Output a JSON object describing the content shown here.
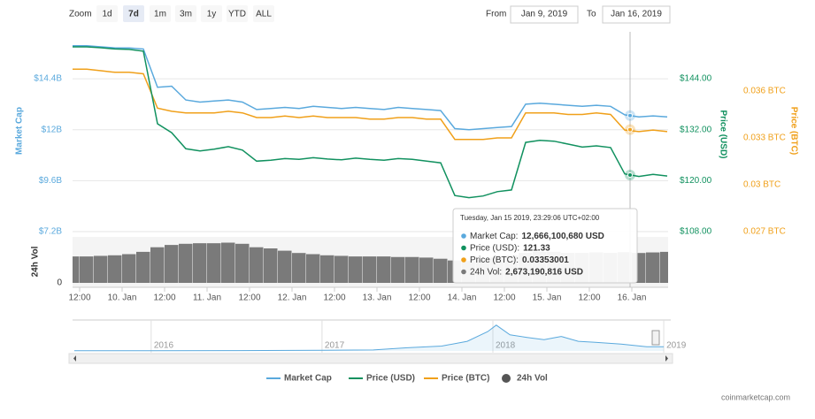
{
  "zoom": {
    "label": "Zoom",
    "buttons": [
      "1d",
      "7d",
      "1m",
      "3m",
      "1y",
      "YTD",
      "ALL"
    ],
    "selected": "7d"
  },
  "range": {
    "from_label": "From",
    "from": "Jan 9, 2019",
    "to_label": "To",
    "to": "Jan 16, 2019"
  },
  "chart_data": {
    "type": "line",
    "x": [
      10,
      14,
      18,
      22,
      26,
      30,
      34,
      38,
      42,
      46,
      50,
      54,
      58,
      62,
      66,
      70,
      74,
      78,
      82,
      86,
      90,
      94,
      98,
      102,
      106,
      110,
      114,
      118,
      122,
      126,
      130,
      134,
      138,
      142,
      146,
      150,
      154,
      158,
      162,
      166,
      170,
      174,
      178
    ],
    "xlim": [
      10,
      178
    ],
    "xticks": [
      {
        "value": 12,
        "label": "12:00"
      },
      {
        "value": 24,
        "label": "10. Jan"
      },
      {
        "value": 36,
        "label": "12:00"
      },
      {
        "value": 48,
        "label": "11. Jan"
      },
      {
        "value": 60,
        "label": "12:00"
      },
      {
        "value": 72,
        "label": "12. Jan"
      },
      {
        "value": 84,
        "label": "12:00"
      },
      {
        "value": 96,
        "label": "13. Jan"
      },
      {
        "value": 108,
        "label": "12:00"
      },
      {
        "value": 120,
        "label": "14. Jan"
      },
      {
        "value": 132,
        "label": "12:00"
      },
      {
        "value": 144,
        "label": "15. Jan"
      },
      {
        "value": 156,
        "label": "12:00"
      },
      {
        "value": 168,
        "label": "16. Jan"
      }
    ],
    "series": [
      {
        "name": "Market Cap",
        "color": "#5aa9dd",
        "axis": "y",
        "values": [
          15950000000.0,
          15950000000.0,
          15900000000.0,
          15850000000.0,
          15850000000.0,
          15800000000.0,
          14000000000.0,
          14050000000.0,
          13400000000.0,
          13300000000.0,
          13350000000.0,
          13400000000.0,
          13300000000.0,
          12950000000.0,
          13000000000.0,
          13050000000.0,
          13000000000.0,
          13100000000.0,
          13050000000.0,
          13000000000.0,
          13050000000.0,
          13000000000.0,
          12950000000.0,
          13050000000.0,
          13000000000.0,
          12950000000.0,
          12900000000.0,
          12050000000.0,
          12000000000.0,
          12050000000.0,
          12100000000.0,
          12150000000.0,
          13200000000.0,
          13250000000.0,
          13200000000.0,
          13150000000.0,
          13100000000.0,
          13150000000.0,
          13100000000.0,
          12700000000.0,
          12600000000.0,
          12650000000.0,
          12600000000.0
        ]
      },
      {
        "name": "Price (USD)",
        "color": "#11915f",
        "axis": "y2",
        "values": [
          151.5,
          151.5,
          151.3,
          151,
          150.9,
          150.5,
          133.4,
          131.3,
          127.5,
          127,
          127.4,
          128,
          127.2,
          124.6,
          124.8,
          125.2,
          125,
          125.4,
          125.1,
          124.9,
          125.3,
          125,
          124.8,
          125.2,
          125,
          124.6,
          124.2,
          116.5,
          116,
          116.4,
          117.4,
          117.8,
          129,
          129.5,
          129.3,
          128.6,
          127.9,
          128.2,
          127.8,
          121.6,
          121,
          121.5,
          121.1
        ]
      },
      {
        "name": "Price (BTC)",
        "color": "#f0a01a",
        "axis": "y3",
        "values": [
          0.0374,
          0.0374,
          0.0373,
          0.0372,
          0.0372,
          0.0371,
          0.0349,
          0.0347,
          0.0346,
          0.0346,
          0.0346,
          0.0347,
          0.0346,
          0.0343,
          0.0343,
          0.0344,
          0.0343,
          0.0344,
          0.0343,
          0.0343,
          0.0343,
          0.0342,
          0.0342,
          0.0343,
          0.0343,
          0.0342,
          0.0342,
          0.0329,
          0.0329,
          0.0329,
          0.033,
          0.033,
          0.0346,
          0.0346,
          0.0346,
          0.0345,
          0.0345,
          0.0346,
          0.0345,
          0.0335,
          0.0334,
          0.0335,
          0.0334
        ]
      },
      {
        "name": "24h Vol",
        "color": "#7a7a7a",
        "axis": "y4",
        "type": "bar",
        "values": [
          2300000000.0,
          2300000000.0,
          2350000000.0,
          2400000000.0,
          2500000000.0,
          2700000000.0,
          3100000000.0,
          3300000000.0,
          3400000000.0,
          3450000000.0,
          3450000000.0,
          3500000000.0,
          3400000000.0,
          3100000000.0,
          3000000000.0,
          2800000000.0,
          2600000000.0,
          2500000000.0,
          2400000000.0,
          2350000000.0,
          2300000000.0,
          2300000000.0,
          2300000000.0,
          2250000000.0,
          2250000000.0,
          2200000000.0,
          2100000000.0,
          1950000000.0,
          1900000000.0,
          2000000000.0,
          2200000000.0,
          2400000000.0,
          2600000000.0,
          2700000000.0,
          2700000000.0,
          2600000000.0,
          2600000000.0,
          2650000000.0,
          2600000000.0,
          2670000000.0,
          2600000000.0,
          2650000000.0,
          2700000000.0
        ]
      }
    ],
    "ylabel": "Market Cap",
    "ylim": [
      7200000000.0,
      16360000000.0
    ],
    "yticks": [
      {
        "value": 7200000000.0,
        "label": "$7.2B"
      },
      {
        "value": 9600000000.0,
        "label": "$9.6B"
      },
      {
        "value": 12000000000.0,
        "label": "$12B"
      },
      {
        "value": 14400000000.0,
        "label": "$14.4B"
      }
    ],
    "y2label": "Price (USD)",
    "y2lim": [
      108,
      153.8
    ],
    "y2ticks": [
      {
        "value": 108,
        "label": "$108.00"
      },
      {
        "value": 120,
        "label": "$120.00"
      },
      {
        "value": 132,
        "label": "$132.00"
      },
      {
        "value": 144,
        "label": "$144.00"
      }
    ],
    "y3label": "Price (BTC)",
    "y3lim": [
      0.027,
      0.03945
    ],
    "y3ticks": [
      {
        "value": 0.027,
        "label": "0.027 BTC"
      },
      {
        "value": 0.03,
        "label": "0.03 BTC"
      },
      {
        "value": 0.033,
        "label": "0.033 BTC"
      },
      {
        "value": 0.036,
        "label": "0.036 BTC"
      }
    ],
    "y4label": "24h Vol",
    "y4lim": [
      0,
      4000000000.0
    ],
    "y4ticks": [
      0
    ],
    "grid": true,
    "legend": "bottom",
    "tooltip": {
      "x": 167.5,
      "title": "Tuesday, Jan 15 2019, 23:29:06 UTC+02:00",
      "items": [
        {
          "label": "Market Cap:",
          "value": 12666100680,
          "value_label": "12,666,100,680 USD"
        },
        {
          "label": "Price (USD):",
          "value": 121.33,
          "value_label": "121.33"
        },
        {
          "label": "Price (BTC):",
          "value": 0.03353001,
          "value_label": "0.03353001"
        },
        {
          "label": "24h Vol:",
          "value": 2673190816,
          "value_label": "2,673,190,816 USD"
        }
      ]
    },
    "navigator": {
      "x": [
        2015.55,
        2016,
        2016.5,
        2017,
        2017.3,
        2017.5,
        2017.7,
        2017.85,
        2017.97,
        2018.02,
        2018.1,
        2018.2,
        2018.3,
        2018.4,
        2018.5,
        2018.6,
        2018.75,
        2018.9,
        2019
      ],
      "values": [
        5000000000.0,
        7000000000.0,
        12000000000.0,
        18000000000.0,
        30000000000.0,
        100000000000.0,
        150000000000.0,
        300000000000.0,
        600000000000.0,
        800000000000.0,
        500000000000.0,
        420000000000.0,
        350000000000.0,
        450000000000.0,
        300000000000.0,
        270000000000.0,
        210000000000.0,
        130000000000.0,
        130000000000.0
      ],
      "xlim": [
        2015.54,
        2019.01
      ],
      "ylim": [
        0,
        850000000000.0
      ],
      "xticks": [
        {
          "value": 2016,
          "label": "2016"
        },
        {
          "value": 2017,
          "label": "2017"
        },
        {
          "value": 2018,
          "label": "2018"
        },
        {
          "value": 2019,
          "label": "2019"
        }
      ]
    }
  },
  "credit": "coinmarketcap.com"
}
